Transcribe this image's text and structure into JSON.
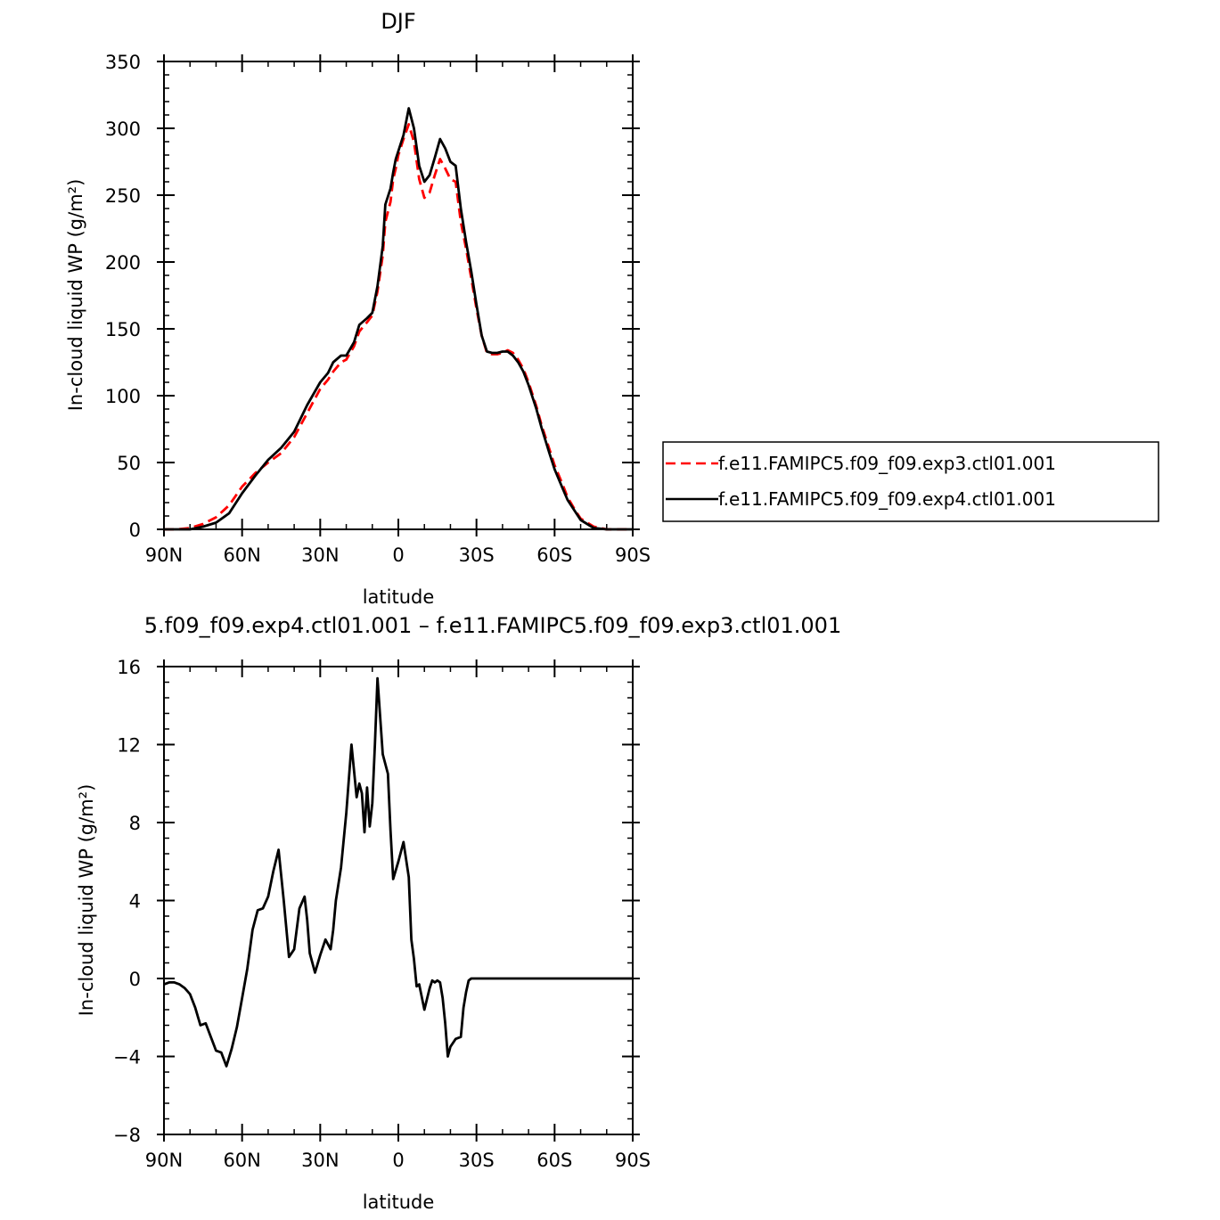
{
  "chart_data": [
    {
      "type": "line",
      "title": "DJF",
      "xlabel": "latitude",
      "ylabel": "In-cloud liquid WP (g/m²)",
      "xlim": [
        90,
        -90
      ],
      "ylim": [
        0,
        350
      ],
      "xticks": [
        90,
        60,
        30,
        0,
        -30,
        -60,
        -90
      ],
      "xtick_labels": [
        "90N",
        "60N",
        "30N",
        "0",
        "30S",
        "60S",
        "90S"
      ],
      "yticks": [
        0,
        50,
        100,
        150,
        200,
        250,
        300,
        350
      ],
      "ytick_labels": [
        "0",
        "50",
        "100",
        "150",
        "200",
        "250",
        "300",
        "350"
      ],
      "legend_position": "right",
      "series": [
        {
          "name": "f.e11.FAMIPC5.f09_f09.exp3.ctl01.001",
          "color": "#ff0000",
          "dash": "dashed",
          "x": [
            90,
            85,
            80,
            75,
            70,
            65,
            60,
            55,
            50,
            45,
            40,
            35,
            30,
            27,
            25,
            22,
            20,
            17,
            15,
            12,
            10,
            8,
            6,
            5,
            3,
            2,
            1,
            0,
            -2,
            -4,
            -6,
            -8,
            -10,
            -12,
            -14,
            -16,
            -18,
            -20,
            -22,
            -24,
            -26,
            -28,
            -30,
            -32,
            -34,
            -36,
            -38,
            -40,
            -42,
            -44,
            -46,
            -48,
            -50,
            -53,
            -55,
            -58,
            -60,
            -63,
            -65,
            -68,
            -70,
            -75,
            -80,
            -85,
            -90
          ],
          "y": [
            0,
            0,
            1,
            4,
            9,
            18,
            32,
            42,
            50,
            57,
            69,
            87,
            105,
            112,
            118,
            125,
            127,
            137,
            148,
            155,
            160,
            178,
            205,
            230,
            245,
            262,
            270,
            280,
            292,
            303,
            290,
            262,
            248,
            252,
            265,
            277,
            270,
            262,
            260,
            230,
            210,
            188,
            165,
            145,
            132,
            131,
            131,
            132,
            134,
            132,
            127,
            120,
            110,
            92,
            78,
            60,
            48,
            34,
            24,
            14,
            8,
            2,
            0,
            0,
            0
          ]
        },
        {
          "name": "f.e11.FAMIPC5.f09_f09.exp4.ctl01.001",
          "color": "#000000",
          "dash": "solid",
          "x": [
            90,
            85,
            80,
            75,
            70,
            65,
            60,
            55,
            50,
            45,
            40,
            35,
            30,
            27,
            25,
            22,
            20,
            17,
            15,
            12,
            10,
            8,
            6,
            5,
            3,
            2,
            1,
            0,
            -2,
            -4,
            -6,
            -8,
            -10,
            -12,
            -14,
            -16,
            -18,
            -20,
            -22,
            -24,
            -26,
            -28,
            -30,
            -32,
            -34,
            -36,
            -38,
            -40,
            -42,
            -44,
            -46,
            -48,
            -50,
            -53,
            -55,
            -58,
            -60,
            -63,
            -65,
            -68,
            -70,
            -75,
            -80,
            -85,
            -90
          ],
          "y": [
            0,
            0,
            0,
            2,
            5,
            12,
            27,
            40,
            52,
            61,
            73,
            93,
            110,
            117,
            125,
            130,
            130,
            140,
            153,
            158,
            162,
            182,
            212,
            243,
            255,
            267,
            277,
            283,
            295,
            315,
            300,
            272,
            260,
            265,
            278,
            292,
            285,
            275,
            272,
            240,
            215,
            193,
            168,
            145,
            133,
            132,
            132,
            133,
            133,
            130,
            125,
            118,
            108,
            90,
            76,
            57,
            45,
            31,
            22,
            13,
            7,
            1,
            0,
            0,
            0
          ]
        }
      ]
    },
    {
      "type": "line",
      "title": "5.f09_f09.exp4.ctl01.001 – f.e11.FAMIPC5.f09_f09.exp3.ctl01.001",
      "xlabel": "latitude",
      "ylabel": "In-cloud liquid WP (g/m²)",
      "xlim": [
        90,
        -90
      ],
      "ylim": [
        -8,
        16
      ],
      "xticks": [
        90,
        60,
        30,
        0,
        -30,
        -60,
        -90
      ],
      "xtick_labels": [
        "90N",
        "60N",
        "30N",
        "0",
        "30S",
        "60S",
        "90S"
      ],
      "yticks": [
        -8,
        -4,
        0,
        4,
        8,
        12,
        16
      ],
      "ytick_labels": [
        "−8",
        "−4",
        "0",
        "4",
        "8",
        "12",
        "16"
      ],
      "series": [
        {
          "color": "#000000",
          "dash": "solid",
          "x": [
            90,
            88,
            86,
            84,
            82,
            80,
            78,
            76,
            74,
            72,
            70,
            68,
            66,
            64,
            62,
            60,
            58,
            56,
            54,
            52,
            50,
            48,
            46,
            44,
            42,
            40,
            38,
            36,
            35,
            34,
            32,
            30,
            28,
            26,
            25,
            24,
            22,
            20,
            18,
            16,
            15,
            14,
            13,
            12,
            11,
            10,
            9,
            8,
            6,
            4,
            3,
            2,
            0,
            -2,
            -4,
            -5,
            -6,
            -7,
            -8,
            -10,
            -12,
            -13,
            -14,
            -15,
            -16,
            -17,
            -18,
            -19,
            -20,
            -22,
            -24,
            -25,
            -26,
            -27,
            -28,
            -30,
            -32,
            -34,
            -36,
            -38,
            -40,
            -42,
            -44,
            -46,
            -48,
            -50,
            -52,
            -54,
            -56,
            -58,
            -60,
            -62,
            -64,
            -66,
            -68,
            -70,
            -72,
            -74,
            -76,
            -78,
            -80,
            -82,
            -84,
            -86,
            -88,
            -90
          ],
          "y": [
            -0.3,
            -0.2,
            -0.2,
            -0.3,
            -0.5,
            -0.8,
            -1.5,
            -2.4,
            -2.3,
            -3.0,
            -3.7,
            -3.8,
            -4.5,
            -3.6,
            -2.5,
            -1.0,
            0.5,
            2.5,
            3.5,
            3.6,
            4.2,
            5.5,
            6.6,
            4.0,
            1.1,
            1.5,
            3.6,
            4.2,
            3.0,
            1.3,
            0.3,
            1.2,
            2.0,
            1.5,
            2.5,
            4.0,
            5.7,
            8.5,
            12.0,
            9.3,
            10.0,
            9.5,
            7.5,
            9.8,
            7.8,
            9.0,
            12.0,
            15.4,
            11.5,
            10.5,
            7.6,
            5.1,
            6.0,
            7.0,
            5.2,
            2.0,
            1.0,
            -0.4,
            -0.3,
            -1.6,
            -0.5,
            -0.1,
            -0.2,
            -0.1,
            -0.2,
            -1.0,
            -2.3,
            -4.0,
            -3.5,
            -3.1,
            -3.0,
            -1.5,
            -0.7,
            -0.1,
            0.0,
            0.0,
            0.0,
            0.0,
            0.0,
            0.0,
            0.0,
            0.0,
            0.0,
            0.0,
            0.0,
            0.0,
            0.0,
            0.0,
            0.0,
            0.0,
            0.0,
            0.0,
            0.0,
            0.0,
            0.0,
            0.0,
            0.0,
            0.0,
            0.0,
            0.0,
            0.0,
            0.0,
            0.0,
            0.0,
            0.0,
            0.0
          ]
        }
      ]
    }
  ]
}
